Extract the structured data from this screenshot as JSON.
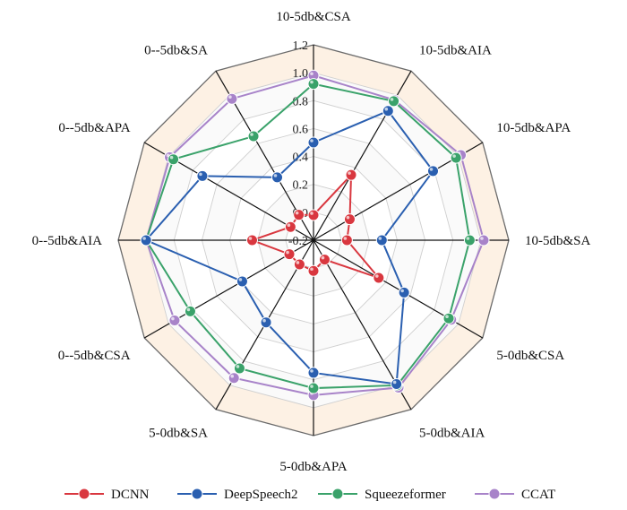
{
  "chart_data": {
    "type": "radar",
    "axes": [
      "10-5db&CSA",
      "10-5db&AIA",
      "10-5db&APA",
      "10-5db&SA",
      "5-0db&CSA",
      "5-0db&AIA",
      "5-0db&APA",
      "5-0db&SA",
      "0--5db&CSA",
      "0--5db&AIA",
      "0--5db&APA",
      "0--5db&SA"
    ],
    "rlim": [
      -0.2,
      1.2
    ],
    "ticks": [
      "-0.2",
      "0.0",
      "0.2",
      "0.4",
      "0.6",
      "0.8",
      "1.0",
      "1.2"
    ],
    "tick_values": [
      -0.2,
      0.0,
      0.2,
      0.4,
      0.6,
      0.8,
      1.0,
      1.2
    ],
    "grid": true,
    "legend_position": "bottom",
    "series": [
      {
        "name": "DCNN",
        "color": "#d9373f",
        "values": [
          -0.02,
          0.34,
          0.1,
          0.04,
          0.34,
          -0.04,
          0.02,
          0.0,
          0.0,
          0.24,
          -0.01,
          0.01
        ]
      },
      {
        "name": "DeepSpeech2",
        "color": "#2a5fb0",
        "values": [
          0.5,
          0.87,
          0.79,
          0.29,
          0.55,
          0.99,
          0.75,
          0.48,
          0.39,
          1.0,
          0.72,
          0.32
        ]
      },
      {
        "name": "Squeezeformer",
        "color": "#3aa26a",
        "values": [
          0.92,
          0.95,
          0.98,
          0.92,
          0.92,
          1.0,
          0.86,
          0.86,
          0.82,
          1.0,
          0.96,
          0.66
        ]
      },
      {
        "name": "CCAT",
        "color": "#a883c9",
        "values": [
          0.98,
          0.96,
          1.02,
          1.02,
          0.94,
          1.02,
          0.91,
          0.94,
          0.95,
          1.0,
          0.99,
          0.97
        ]
      }
    ]
  }
}
